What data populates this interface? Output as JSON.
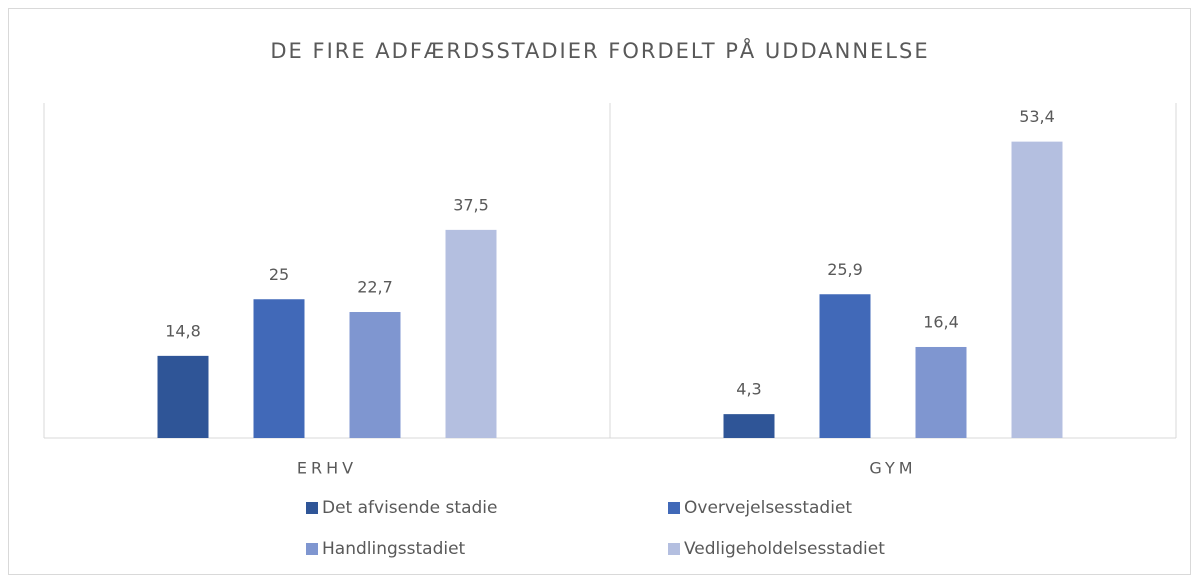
{
  "chart_data": {
    "type": "bar",
    "title": "DE FIRE ADFÆRDSSTADIER FORDELT PÅ UDDANNELSE",
    "categories": [
      "ERHV",
      "GYM"
    ],
    "series": [
      {
        "name": "Det afvisende stadie",
        "color": "#2f5597",
        "values": [
          14.8,
          4.3
        ],
        "value_labels": [
          "14,8",
          "4,3"
        ]
      },
      {
        "name": "Overvejelsesstadiet",
        "color": "#4169b8",
        "values": [
          25,
          25.9
        ],
        "value_labels": [
          "25",
          "25,9"
        ]
      },
      {
        "name": "Handlingsstadiet",
        "color": "#7f96d0",
        "values": [
          22.7,
          16.4
        ],
        "value_labels": [
          "22,7",
          "16,4"
        ]
      },
      {
        "name": "Vedligeholdelsesstadiet",
        "color": "#b4bfe0",
        "values": [
          37.5,
          53.4
        ],
        "value_labels": [
          "37,5",
          "53,4"
        ]
      }
    ],
    "ylim": [
      0,
      60
    ]
  }
}
